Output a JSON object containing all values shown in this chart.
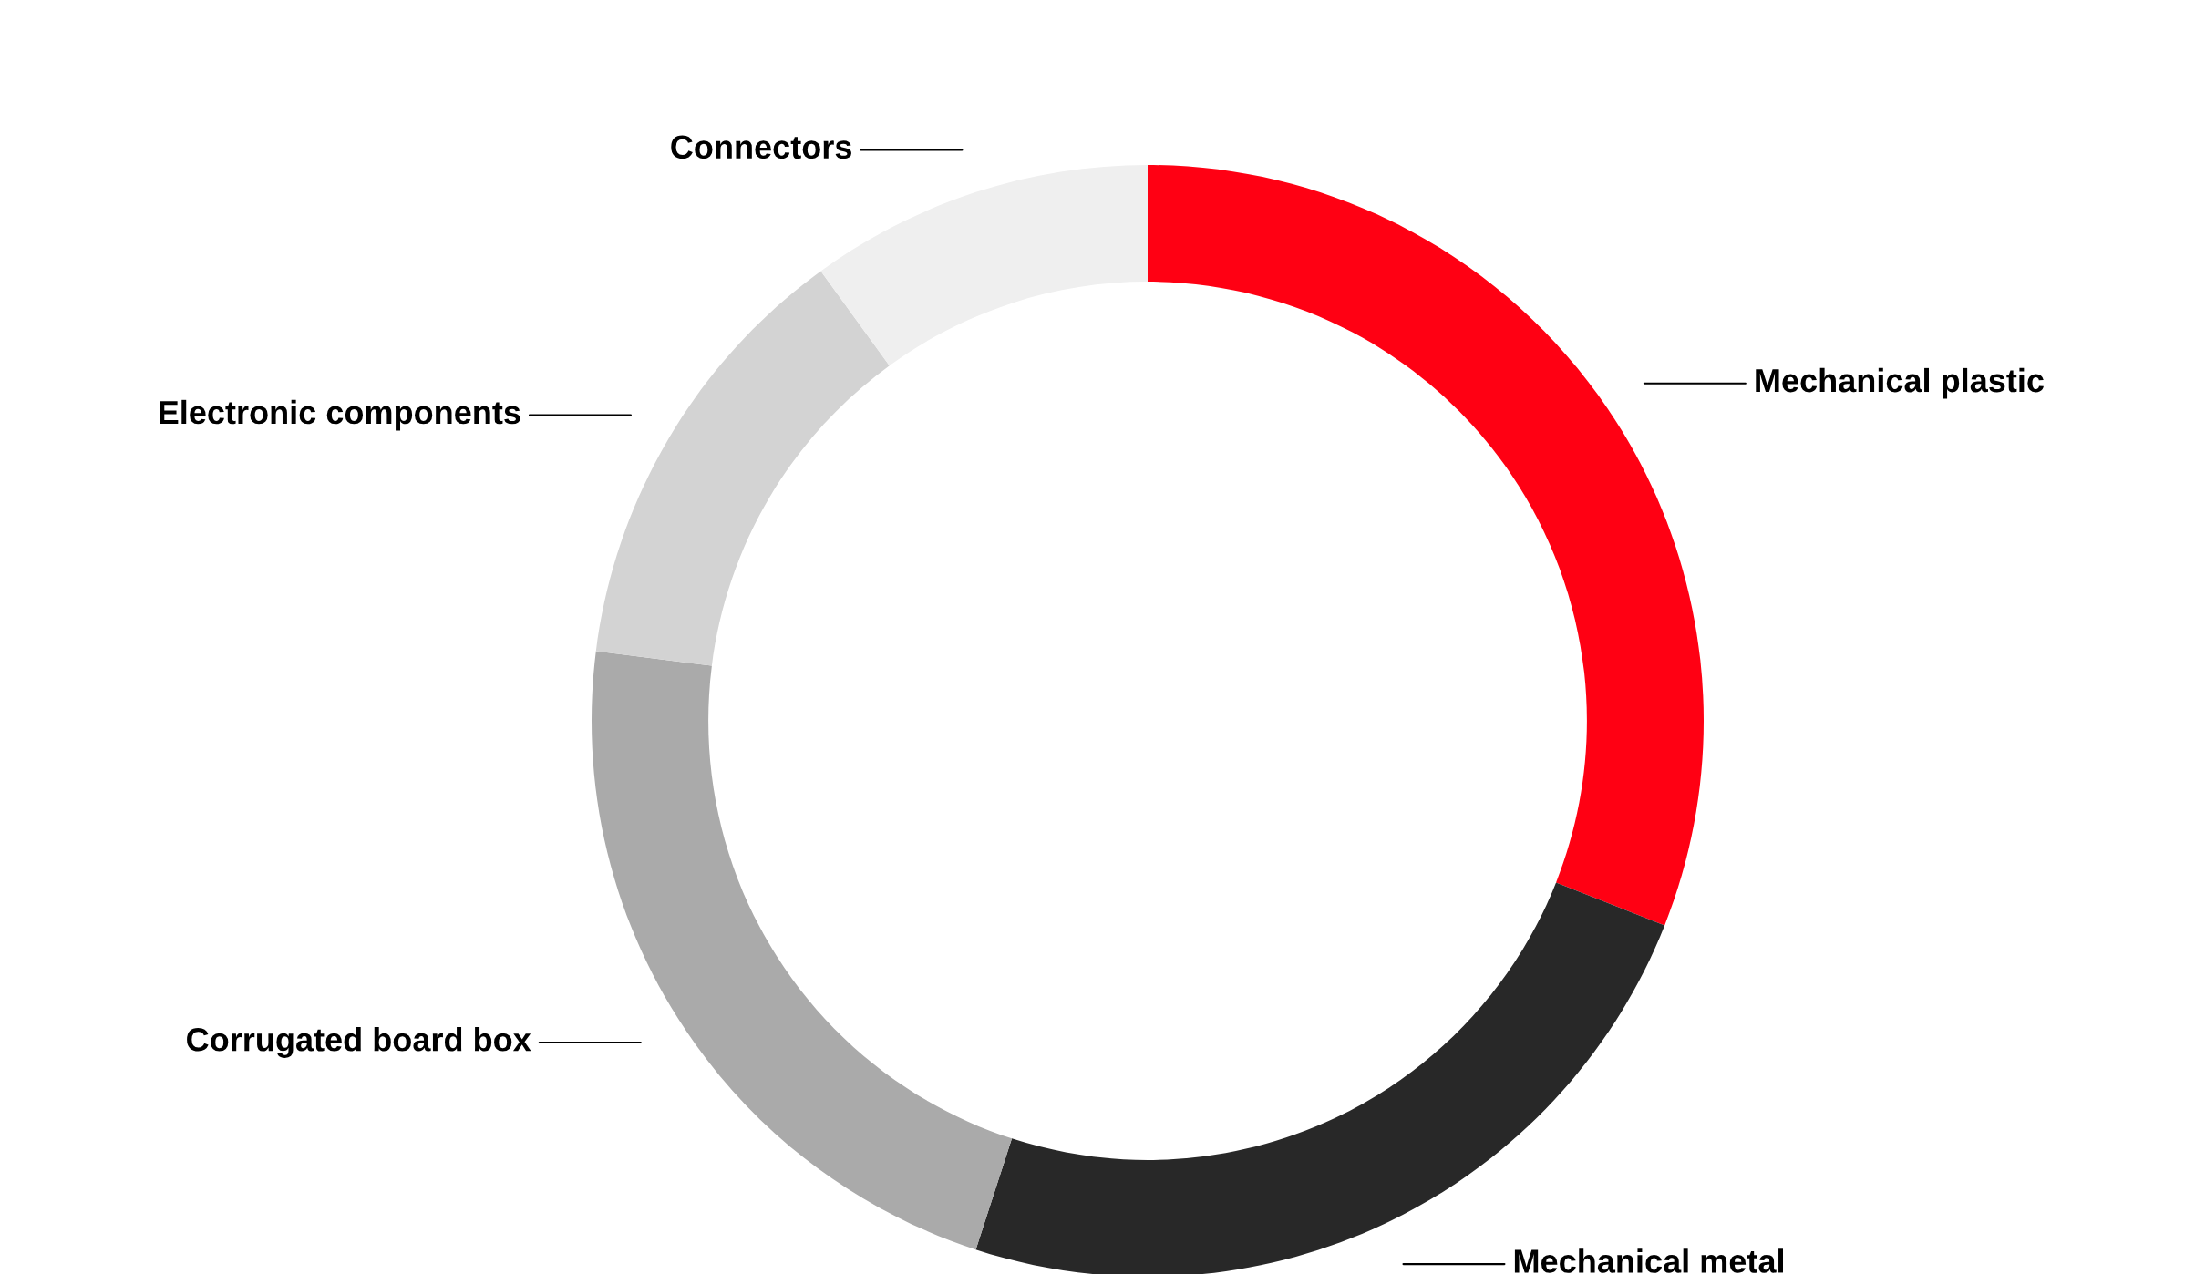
{
  "chart_data": {
    "type": "donut",
    "categories": [
      "Mechanical plastic",
      "Mechanical metal",
      "Corrugated board box",
      "Electronic components",
      "Connectors"
    ],
    "values": [
      31,
      24,
      22,
      13,
      10
    ],
    "colors": [
      "#ff0013",
      "#282828",
      "#aaaaaa",
      "#d3d3d3",
      "#efefef"
    ]
  }
}
